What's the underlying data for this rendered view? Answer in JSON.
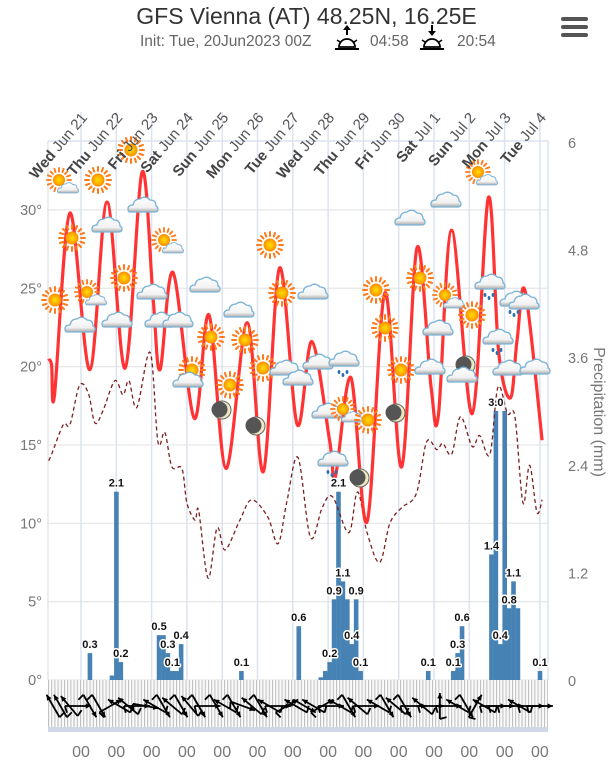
{
  "header": {
    "title": "GFS Vienna (AT) 48.25N, 16.25E",
    "init": "Init: Tue, 20Jun2023 00Z",
    "sunrise": "04:58",
    "sunset": "20:54",
    "menu_icon": "hamburger-menu-icon"
  },
  "chart_data": {
    "type": "line",
    "x_unit": "hours since Tue 20 Jun 2023 00Z",
    "x_tick_day_labels": [
      {
        "wd": "Wed",
        "date": "Jun 21"
      },
      {
        "wd": "Thu",
        "date": "Jun 22"
      },
      {
        "wd": "Fri",
        "date": "Jun 23"
      },
      {
        "wd": "Sat",
        "date": "Jun 24"
      },
      {
        "wd": "Sun",
        "date": "Jun 25"
      },
      {
        "wd": "Mon",
        "date": "Jun 26"
      },
      {
        "wd": "Tue",
        "date": "Jun 27"
      },
      {
        "wd": "Wed",
        "date": "Jun 28"
      },
      {
        "wd": "Thu",
        "date": "Jun 29"
      },
      {
        "wd": "Fri",
        "date": "Jun 30"
      },
      {
        "wd": "Sat",
        "date": "Jul 1"
      },
      {
        "wd": "Sun",
        "date": "Jul 2"
      },
      {
        "wd": "Mon",
        "date": "Jul 3"
      },
      {
        "wd": "Tue",
        "date": "Jul 4"
      }
    ],
    "x_bottom_tick_label": "00",
    "y_left": {
      "ticks": [
        "0°",
        "5°",
        "10°",
        "15°",
        "20°",
        "25°",
        "30°"
      ],
      "values": [
        0,
        5,
        10,
        15,
        20,
        25,
        30
      ],
      "range": [
        0,
        33.5
      ]
    },
    "y_right": {
      "label": "Precipitation (mm)",
      "ticks": [
        "0",
        "1.2",
        "2.4",
        "3.6",
        "4.8",
        "6"
      ],
      "values": [
        0,
        1.2,
        2.4,
        3.6,
        4.8,
        6
      ],
      "range": [
        0,
        6
      ]
    },
    "grid": true,
    "colors": {
      "temperature": "#ff3333",
      "dewpoint": "#7a1f1f",
      "precip": "#4682b4",
      "grid": "#e6e6e6",
      "day_lines": "#dbe3ef"
    },
    "temperature": [
      [
        2,
        20.5
      ],
      [
        4,
        20.1
      ],
      [
        6,
        18.2
      ],
      [
        16.5,
        29.8
      ],
      [
        30,
        19.8
      ],
      [
        41.7,
        30.5
      ],
      [
        54,
        19.9
      ],
      [
        65.5,
        32.4
      ],
      [
        73,
        24.4
      ],
      [
        77.7,
        19.8
      ],
      [
        86.6,
        26.0
      ],
      [
        101,
        16.7
      ],
      [
        111,
        23.3
      ],
      [
        122.6,
        13.5
      ],
      [
        137,
        22.8
      ],
      [
        148,
        13.3
      ],
      [
        159,
        26.3
      ],
      [
        171,
        16.3
      ],
      [
        181,
        21.6
      ],
      [
        193,
        15.3
      ],
      [
        197,
        13.0
      ],
      [
        207.5,
        19.3
      ],
      [
        218.5,
        10.1
      ],
      [
        230.6,
        24.7
      ],
      [
        242,
        13.6
      ],
      [
        252.5,
        27.6
      ],
      [
        262,
        18.7
      ],
      [
        267,
        16.9
      ],
      [
        276,
        28.7
      ],
      [
        290,
        17.0
      ],
      [
        301,
        30.8
      ],
      [
        308,
        20.9
      ],
      [
        316,
        18.0
      ],
      [
        320.5,
        21.7
      ],
      [
        326,
        24.8
      ],
      [
        337.5,
        15.3
      ]
    ],
    "dewpoint": [
      [
        2,
        14.0
      ],
      [
        4,
        14.4
      ],
      [
        12,
        16.3
      ],
      [
        16.5,
        16.3
      ],
      [
        23,
        18.8
      ],
      [
        29,
        18.3
      ],
      [
        33.5,
        16.4
      ],
      [
        39,
        17.2
      ],
      [
        47,
        19.1
      ],
      [
        52.6,
        18.2
      ],
      [
        56.6,
        19.1
      ],
      [
        62,
        17.4
      ],
      [
        71,
        20.9
      ],
      [
        76.3,
        15.2
      ],
      [
        81,
        15.8
      ],
      [
        85.8,
        13.6
      ],
      [
        92.6,
        13.5
      ],
      [
        96,
        11.3
      ],
      [
        101.5,
        10.2
      ],
      [
        104,
        10.8
      ],
      [
        110.4,
        6.5
      ],
      [
        116.5,
        9.7
      ],
      [
        122,
        8.3
      ],
      [
        132,
        10.2
      ],
      [
        140,
        11.5
      ],
      [
        151,
        10.4
      ],
      [
        158,
        8.7
      ],
      [
        164,
        11.4
      ],
      [
        171.5,
        14.2
      ],
      [
        180,
        9.1
      ],
      [
        188,
        11.0
      ],
      [
        195,
        11.7
      ],
      [
        206,
        9.4
      ],
      [
        212,
        12.0
      ],
      [
        218.5,
        9.4
      ],
      [
        227,
        7.5
      ],
      [
        234,
        10.0
      ],
      [
        242,
        11.0
      ],
      [
        252,
        11.9
      ],
      [
        259,
        15.2
      ],
      [
        266,
        14.7
      ],
      [
        270,
        15.1
      ],
      [
        276,
        14.4
      ],
      [
        282,
        16.8
      ],
      [
        290,
        14.9
      ],
      [
        295,
        15.6
      ],
      [
        302,
        14.4
      ],
      [
        307.5,
        18.7
      ],
      [
        314,
        17.0
      ],
      [
        319,
        16.8
      ],
      [
        324.5,
        11.3
      ],
      [
        329,
        13.7
      ],
      [
        334,
        10.7
      ],
      [
        337.5,
        11.5
      ]
    ],
    "precip": [
      [
        30,
        0.3,
        "0.3"
      ],
      [
        45,
        0.05,
        ""
      ],
      [
        48,
        2.1,
        "2.1"
      ],
      [
        51,
        0.2,
        "0.2"
      ],
      [
        77,
        0.5,
        "0.5"
      ],
      [
        80,
        0.5,
        ""
      ],
      [
        83,
        0.3,
        "0.3"
      ],
      [
        86,
        0.1,
        "0.1"
      ],
      [
        89,
        0.1,
        ""
      ],
      [
        92,
        0.4,
        "0.4"
      ],
      [
        133,
        0.1,
        "0.1"
      ],
      [
        172,
        0.6,
        "0.6"
      ],
      [
        187,
        0.03,
        ""
      ],
      [
        190,
        0.1,
        ""
      ],
      [
        193,
        0.2,
        "0.2"
      ],
      [
        196,
        0.9,
        "0.9"
      ],
      [
        199,
        2.1,
        "2.1"
      ],
      [
        202,
        1.1,
        "1.1"
      ],
      [
        205,
        0.9,
        ""
      ],
      [
        208,
        0.4,
        "0.4"
      ],
      [
        211,
        0.9,
        "0.9"
      ],
      [
        214,
        0.1,
        "0.1"
      ],
      [
        260,
        0.1,
        "0.1"
      ],
      [
        277,
        0.1,
        "0.1"
      ],
      [
        280,
        0.3,
        "0.3"
      ],
      [
        283,
        0.6,
        "0.6"
      ],
      [
        303,
        1.4,
        "1.4"
      ],
      [
        306,
        3.0,
        "3.0"
      ],
      [
        309,
        0.4,
        "0.4"
      ],
      [
        312,
        3.0,
        ""
      ],
      [
        315,
        0.8,
        "0.8"
      ],
      [
        318,
        1.1,
        "1.1"
      ],
      [
        321,
        0.8,
        ""
      ],
      [
        336,
        0.1,
        "0.1"
      ]
    ],
    "weather_icons": [
      "sun-cloud",
      "sun",
      "sun",
      "sun",
      "cloud",
      "cloud",
      "sun-cloud",
      "sun",
      "sun-cloud",
      "sun",
      "cloud",
      "cloud",
      "cloud",
      "cloud",
      "cloud",
      "cloud",
      "sun",
      "cloud",
      "sun",
      "cloud",
      "sun",
      "sun",
      "sun",
      "sun",
      "cloud",
      "sun",
      "cloud",
      "cloud",
      "cloud",
      "rain-cloud",
      "moon",
      "moon",
      "cloud",
      "sun-cloud",
      "sun",
      "rain-cloud",
      "moon",
      "moon",
      "sun",
      "sun",
      "sun",
      "cloud",
      "cloud",
      "sun",
      "sun-cloud",
      "cloud",
      "sun",
      "cloud",
      "moon",
      "cloud",
      "sun-cloud",
      "rain-cloud",
      "rain-cloud",
      "cloud",
      "rain-cloud",
      "cloud",
      "cloud"
    ],
    "wind_direction_to_deg": [
      [
        5,
        -120
      ],
      [
        10,
        -120
      ],
      [
        16,
        -130
      ],
      [
        22,
        0
      ],
      [
        30,
        60
      ],
      [
        36,
        60
      ],
      [
        44,
        -30
      ],
      [
        50,
        -150
      ],
      [
        56,
        -140
      ],
      [
        62,
        0
      ],
      [
        68,
        10
      ],
      [
        74,
        -150
      ],
      [
        80,
        60
      ],
      [
        86,
        -140
      ],
      [
        92,
        60
      ],
      [
        98,
        -130
      ],
      [
        104,
        60
      ],
      [
        110,
        0
      ],
      [
        116,
        60
      ],
      [
        122,
        -150
      ],
      [
        128,
        60
      ],
      [
        134,
        20
      ],
      [
        140,
        -140
      ],
      [
        146,
        60
      ],
      [
        152,
        -150
      ],
      [
        158,
        0
      ],
      [
        164,
        -30
      ],
      [
        170,
        -150
      ],
      [
        176,
        30
      ],
      [
        182,
        -150
      ],
      [
        188,
        -30
      ],
      [
        194,
        0
      ],
      [
        200,
        -150
      ],
      [
        206,
        60
      ],
      [
        212,
        -140
      ],
      [
        218,
        0
      ],
      [
        226,
        -150
      ],
      [
        232,
        60
      ],
      [
        238,
        -140
      ],
      [
        244,
        60
      ],
      [
        250,
        0
      ],
      [
        256,
        -140
      ],
      [
        262,
        0
      ],
      [
        268,
        -90
      ],
      [
        274,
        0
      ],
      [
        280,
        -150
      ],
      [
        286,
        60
      ],
      [
        292,
        -60
      ],
      [
        298,
        -150
      ],
      [
        304,
        0
      ],
      [
        310,
        0
      ],
      [
        316,
        0
      ],
      [
        322,
        -150
      ],
      [
        330,
        0
      ],
      [
        336,
        0
      ]
    ]
  }
}
